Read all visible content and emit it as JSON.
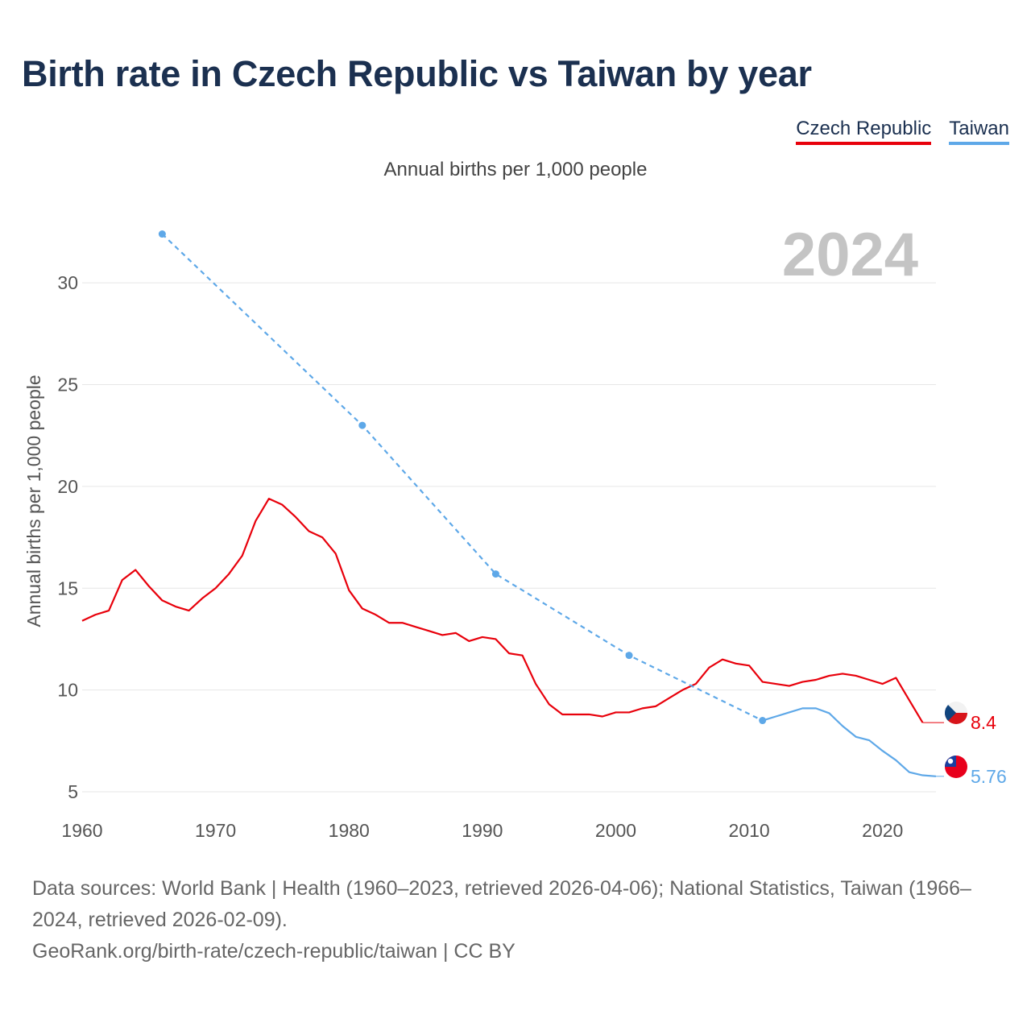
{
  "title": "Birth rate in Czech Republic vs Taiwan by year",
  "subtitle": "Annual births per 1,000 people",
  "legend": [
    {
      "label": "Czech Republic",
      "color": "#e8000b"
    },
    {
      "label": "Taiwan",
      "color": "#5ea8e8"
    }
  ],
  "year_watermark": "2024",
  "footer": {
    "sources": "Data sources: World Bank | Health (1960–2023, retrieved 2026-04-06); National Statistics, Taiwan (1966–2024, retrieved 2026-02-09).",
    "link": "GeoRank.org/birth-rate/czech-republic/taiwan | CC BY"
  },
  "chart_data": {
    "type": "line",
    "title": "Birth rate in Czech Republic vs Taiwan by year",
    "xlabel": "",
    "ylabel": "Annual births per 1,000 people",
    "xlim": [
      1960,
      2024
    ],
    "ylim": [
      5,
      32.5
    ],
    "xticks": [
      1960,
      1970,
      1980,
      1990,
      2000,
      2010,
      2020
    ],
    "yticks": [
      5,
      10,
      15,
      20,
      25,
      30
    ],
    "grid": true,
    "series": [
      {
        "name": "Czech Republic",
        "color": "#e8000b",
        "end_label": "8.4",
        "end_year": 2024,
        "end_value": 8.4,
        "x": [
          1960,
          1961,
          1962,
          1963,
          1964,
          1965,
          1966,
          1967,
          1968,
          1969,
          1970,
          1971,
          1972,
          1973,
          1974,
          1975,
          1976,
          1977,
          1978,
          1979,
          1980,
          1981,
          1982,
          1983,
          1984,
          1985,
          1986,
          1987,
          1988,
          1989,
          1990,
          1991,
          1992,
          1993,
          1994,
          1995,
          1996,
          1997,
          1998,
          1999,
          2000,
          2001,
          2002,
          2003,
          2004,
          2005,
          2006,
          2007,
          2008,
          2009,
          2010,
          2011,
          2012,
          2013,
          2014,
          2015,
          2016,
          2017,
          2018,
          2019,
          2020,
          2021,
          2022,
          2023
        ],
        "y": [
          13.4,
          13.7,
          13.9,
          15.4,
          15.9,
          15.1,
          14.4,
          14.1,
          13.9,
          14.5,
          15.0,
          15.7,
          16.6,
          18.3,
          19.4,
          19.1,
          18.5,
          17.8,
          17.5,
          16.7,
          14.9,
          14.0,
          13.7,
          13.3,
          13.3,
          13.1,
          12.9,
          12.7,
          12.8,
          12.4,
          12.6,
          12.5,
          11.8,
          11.7,
          10.3,
          9.3,
          8.8,
          8.8,
          8.8,
          8.7,
          8.9,
          8.9,
          9.1,
          9.2,
          9.6,
          10.0,
          10.3,
          11.1,
          11.5,
          11.3,
          11.2,
          10.4,
          10.3,
          10.2,
          10.4,
          10.5,
          10.7,
          10.8,
          10.7,
          10.5,
          10.3,
          10.6,
          9.5,
          8.4
        ]
      },
      {
        "name": "Taiwan",
        "color": "#5ea8e8",
        "end_label": "5.76",
        "end_year": 2024,
        "end_value": 5.76,
        "sparse_x": [
          1966,
          1981,
          1991,
          2001,
          2011
        ],
        "sparse_y": [
          32.4,
          23.0,
          15.7,
          11.7,
          8.5
        ],
        "x": [
          2011,
          2012,
          2013,
          2014,
          2015,
          2016,
          2017,
          2018,
          2019,
          2020,
          2021,
          2022,
          2023,
          2024
        ],
        "y": [
          8.5,
          8.7,
          8.9,
          9.1,
          9.1,
          8.86,
          8.23,
          7.7,
          7.53,
          7.01,
          6.55,
          5.96,
          5.81,
          5.76
        ]
      }
    ]
  }
}
